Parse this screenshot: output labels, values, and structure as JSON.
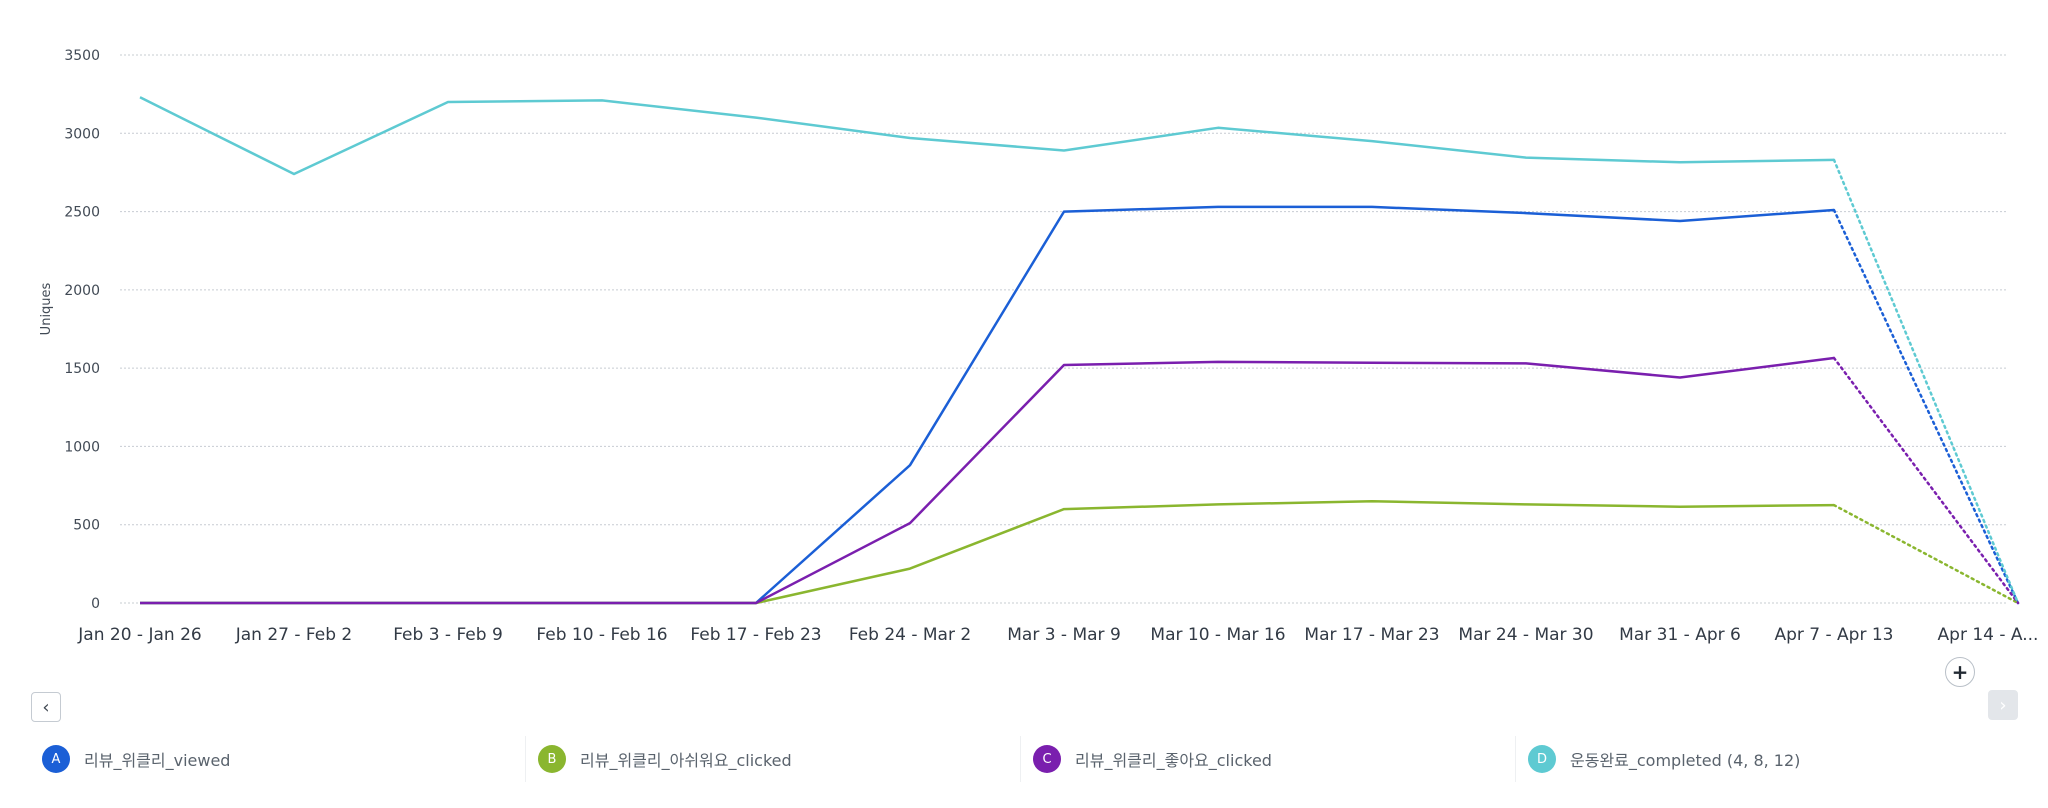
{
  "chart_data": {
    "type": "line",
    "ylabel": "Uniques",
    "ylim": [
      0,
      3500
    ],
    "yticks": [
      0,
      500,
      1000,
      1500,
      2000,
      2500,
      3000,
      3500
    ],
    "grid": true,
    "categories": [
      "Jan 20 - Jan 26",
      "Jan 27 - Feb 2",
      "Feb 3 - Feb 9",
      "Feb 10 - Feb 16",
      "Feb 17 - Feb 23",
      "Feb 24 - Mar 2",
      "Mar 3 - Mar 9",
      "Mar 10 - Mar 16",
      "Mar 17 - Mar 23",
      "Mar 24 - Mar 30",
      "Mar 31 - Apr 6",
      "Apr 7 - Apr 13",
      "Apr 14 - A..."
    ],
    "incomplete_last_period": true,
    "series": [
      {
        "key": "A",
        "name": "리뷰_위클리_viewed",
        "color": "#1b5fd6",
        "values": [
          0,
          0,
          0,
          0,
          0,
          880,
          2500,
          2530,
          2530,
          2490,
          2440,
          2510,
          0
        ]
      },
      {
        "key": "B",
        "name": "리뷰_위클리_아쉬워요_clicked",
        "color": "#8ab62f",
        "values": [
          0,
          0,
          0,
          0,
          0,
          220,
          600,
          630,
          650,
          630,
          615,
          625,
          0
        ]
      },
      {
        "key": "C",
        "name": "리뷰_위클리_좋아요_clicked",
        "color": "#7a1fae",
        "values": [
          0,
          0,
          0,
          0,
          0,
          510,
          1520,
          1540,
          1535,
          1530,
          1440,
          1565,
          0
        ]
      },
      {
        "key": "D",
        "name": "운동완료_completed (4, 8, 12)",
        "color": "#5ecad2",
        "values": [
          3230,
          2740,
          3200,
          3210,
          3100,
          2970,
          2890,
          3035,
          2950,
          2845,
          2815,
          2830,
          0
        ]
      }
    ]
  },
  "nav": {
    "prev_icon": "‹",
    "next_icon": "›",
    "add_icon": "+"
  }
}
